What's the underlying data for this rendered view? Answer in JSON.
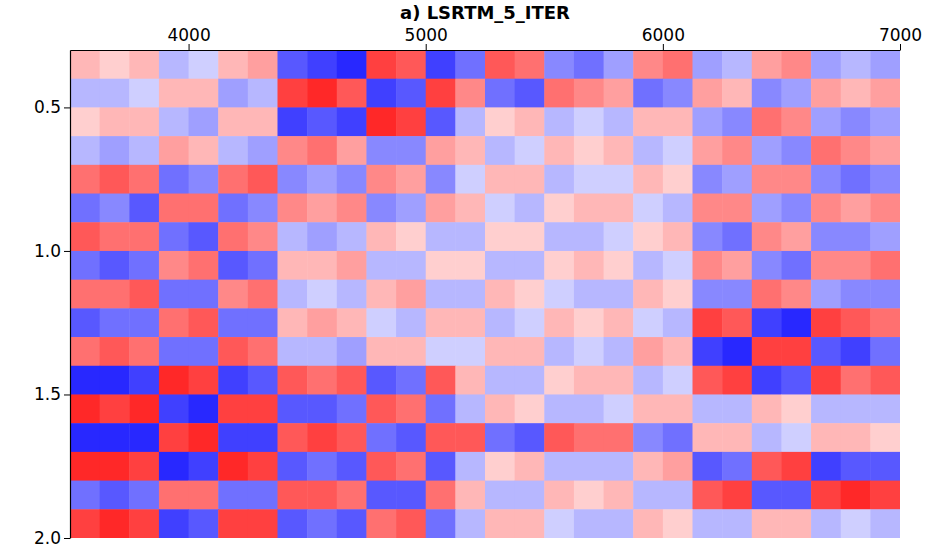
{
  "chart_data": {
    "type": "heatmap",
    "title": "a) LSRTM_5_ITER",
    "xlim": [
      3500,
      7000
    ],
    "xticks": [
      4000,
      5000,
      6000,
      7000
    ],
    "ylim": [
      0.3,
      2.0
    ],
    "yticks": [
      0.5,
      {
        "value": 1,
        "label": "1.0"
      },
      1.5,
      {
        "value": 2,
        "label": "2.0"
      }
    ],
    "zlim": [
      -1,
      1
    ],
    "x_bins": [
      3500,
      3625,
      3750,
      3875,
      4000,
      4125,
      4250,
      4375,
      4500,
      4625,
      4750,
      4875,
      5000,
      5125,
      5250,
      5375,
      5500,
      5625,
      5750,
      5875,
      6000,
      6125,
      6250,
      6375,
      6500,
      6625,
      6750,
      6875,
      7000
    ],
    "y_bins": [
      0.3,
      0.4,
      0.5,
      0.6,
      0.7,
      0.8,
      0.9,
      1.0,
      1.1,
      1.2,
      1.3,
      1.4,
      1.5,
      1.6,
      1.7,
      1.8,
      1.9,
      2.0
    ],
    "cells": [
      [
        0.3,
        0.2,
        0.3,
        -0.3,
        -0.2,
        0.3,
        0.4,
        -0.7,
        -0.8,
        -0.9,
        0.8,
        0.7,
        -0.8,
        -0.6,
        0.7,
        0.6,
        -0.5,
        -0.6,
        -0.4,
        0.5,
        0.6,
        -0.4,
        -0.3,
        0.4,
        0.5,
        -0.4,
        -0.3,
        -0.4
      ],
      [
        -0.3,
        -0.3,
        -0.2,
        0.3,
        0.3,
        -0.4,
        -0.3,
        0.8,
        0.9,
        0.7,
        -0.8,
        -0.7,
        0.8,
        0.5,
        -0.6,
        -0.7,
        0.6,
        0.5,
        0.4,
        -0.6,
        -0.5,
        0.4,
        0.3,
        -0.5,
        -0.4,
        0.4,
        0.3,
        0.4
      ],
      [
        0.2,
        0.3,
        0.3,
        -0.3,
        -0.4,
        0.3,
        0.3,
        -0.8,
        -0.7,
        -0.8,
        0.9,
        0.8,
        -0.7,
        -0.3,
        0.2,
        0.3,
        -0.3,
        -0.2,
        -0.3,
        0.3,
        0.3,
        -0.4,
        -0.5,
        0.6,
        0.5,
        -0.4,
        -0.5,
        -0.4
      ],
      [
        -0.3,
        -0.4,
        -0.3,
        0.4,
        0.3,
        -0.3,
        -0.4,
        0.5,
        0.6,
        0.4,
        -0.5,
        -0.5,
        0.4,
        0.3,
        -0.3,
        -0.2,
        0.3,
        0.2,
        0.3,
        -0.3,
        -0.2,
        0.4,
        0.5,
        -0.4,
        -0.5,
        0.6,
        0.5,
        0.4
      ],
      [
        0.6,
        0.7,
        0.6,
        -0.6,
        -0.5,
        0.6,
        0.7,
        -0.5,
        -0.4,
        -0.5,
        0.5,
        0.4,
        -0.5,
        -0.2,
        0.3,
        0.3,
        -0.3,
        -0.2,
        -0.2,
        0.3,
        0.2,
        -0.5,
        -0.4,
        0.5,
        0.5,
        -0.5,
        -0.6,
        -0.5
      ],
      [
        -0.6,
        -0.5,
        -0.7,
        0.6,
        0.6,
        -0.6,
        -0.5,
        0.5,
        0.4,
        0.5,
        -0.5,
        -0.4,
        0.4,
        0.3,
        -0.2,
        -0.3,
        0.2,
        0.3,
        0.3,
        -0.2,
        -0.3,
        0.5,
        0.5,
        -0.4,
        -0.5,
        0.5,
        0.4,
        0.5
      ],
      [
        0.7,
        0.6,
        0.6,
        -0.6,
        -0.7,
        0.6,
        0.5,
        -0.3,
        -0.4,
        -0.3,
        0.3,
        0.2,
        -0.3,
        -0.3,
        0.2,
        0.2,
        -0.3,
        -0.3,
        -0.2,
        0.2,
        0.3,
        -0.5,
        -0.6,
        0.5,
        0.4,
        -0.5,
        -0.5,
        -0.4
      ],
      [
        -0.6,
        -0.7,
        -0.6,
        0.5,
        0.6,
        -0.7,
        -0.6,
        0.3,
        0.3,
        0.4,
        -0.3,
        -0.3,
        0.2,
        0.2,
        -0.3,
        -0.3,
        0.2,
        0.3,
        0.2,
        -0.3,
        -0.2,
        0.5,
        0.4,
        -0.5,
        -0.6,
        0.5,
        0.5,
        0.6
      ],
      [
        0.6,
        0.6,
        0.7,
        -0.6,
        -0.6,
        0.5,
        0.6,
        -0.3,
        -0.2,
        -0.3,
        0.3,
        0.4,
        -0.3,
        -0.3,
        0.3,
        0.2,
        -0.2,
        -0.3,
        -0.3,
        0.3,
        0.2,
        -0.5,
        -0.5,
        0.6,
        0.5,
        -0.4,
        -0.5,
        -0.5
      ],
      [
        -0.7,
        -0.6,
        -0.6,
        0.6,
        0.7,
        -0.6,
        -0.6,
        0.3,
        0.4,
        0.3,
        -0.2,
        -0.3,
        0.3,
        0.3,
        -0.3,
        -0.2,
        0.3,
        0.2,
        0.3,
        -0.2,
        -0.3,
        0.8,
        0.7,
        -0.8,
        -0.9,
        0.8,
        0.7,
        0.6
      ],
      [
        0.6,
        0.7,
        0.6,
        -0.6,
        -0.6,
        0.7,
        0.6,
        -0.3,
        -0.3,
        -0.4,
        0.3,
        0.3,
        -0.2,
        -0.2,
        0.3,
        0.3,
        -0.3,
        -0.2,
        -0.3,
        0.4,
        0.3,
        -0.8,
        -0.9,
        0.8,
        0.8,
        -0.7,
        -0.8,
        -0.6
      ],
      [
        -0.9,
        -0.9,
        -0.8,
        0.9,
        0.8,
        -0.8,
        -0.7,
        0.7,
        0.6,
        0.7,
        -0.7,
        -0.6,
        0.7,
        0.3,
        -0.3,
        -0.3,
        0.2,
        0.3,
        0.3,
        -0.3,
        -0.2,
        0.7,
        0.8,
        -0.8,
        -0.7,
        0.8,
        0.6,
        0.7
      ],
      [
        0.9,
        0.8,
        0.9,
        -0.8,
        -0.9,
        0.8,
        0.8,
        -0.7,
        -0.7,
        -0.6,
        0.7,
        0.6,
        -0.6,
        -0.3,
        0.3,
        0.2,
        -0.3,
        -0.3,
        -0.2,
        0.3,
        0.3,
        -0.3,
        -0.3,
        0.3,
        0.2,
        -0.3,
        -0.3,
        -0.3
      ],
      [
        -0.9,
        -0.9,
        -0.9,
        0.8,
        0.9,
        -0.8,
        -0.8,
        0.7,
        0.8,
        0.7,
        -0.6,
        -0.7,
        0.7,
        0.7,
        -0.6,
        -0.7,
        0.7,
        0.6,
        0.6,
        -0.5,
        -0.6,
        0.3,
        0.3,
        -0.3,
        -0.2,
        0.3,
        0.3,
        0.2
      ],
      [
        0.9,
        0.9,
        0.8,
        -0.9,
        -0.8,
        0.9,
        0.8,
        -0.7,
        -0.6,
        -0.7,
        0.7,
        0.6,
        -0.7,
        -0.3,
        0.2,
        0.3,
        -0.3,
        -0.3,
        -0.3,
        0.3,
        0.4,
        -0.7,
        -0.6,
        0.7,
        0.8,
        -0.8,
        -0.7,
        -0.7
      ],
      [
        -0.6,
        -0.7,
        -0.6,
        0.6,
        0.6,
        -0.6,
        -0.6,
        0.7,
        0.7,
        0.6,
        -0.7,
        -0.7,
        0.6,
        0.3,
        -0.3,
        -0.3,
        0.3,
        0.2,
        0.3,
        -0.3,
        -0.3,
        0.7,
        0.8,
        -0.7,
        -0.7,
        0.8,
        0.9,
        0.8
      ],
      [
        0.8,
        0.9,
        0.8,
        -0.8,
        -0.7,
        0.8,
        0.8,
        -0.7,
        -0.6,
        -0.7,
        0.6,
        0.7,
        -0.6,
        -0.3,
        0.3,
        0.3,
        -0.2,
        -0.3,
        -0.3,
        0.3,
        0.2,
        -0.3,
        -0.3,
        0.3,
        0.3,
        -0.3,
        -0.2,
        -0.3
      ]
    ]
  }
}
